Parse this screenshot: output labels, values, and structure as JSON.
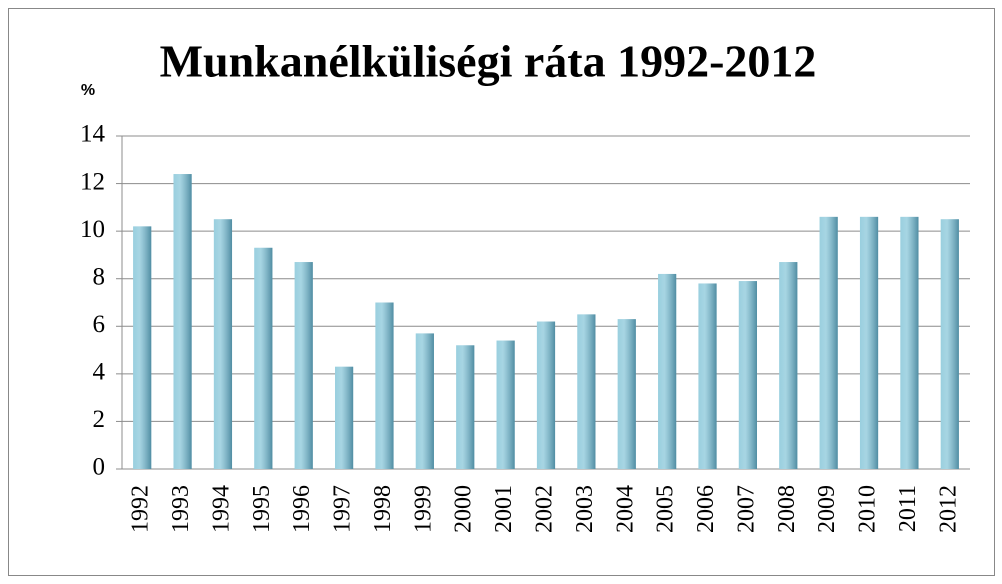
{
  "chart_data": {
    "type": "bar",
    "title": "Munkanélküliségi ráta 1992-2012",
    "y_label": "%",
    "categories": [
      "1992",
      "1993",
      "1994",
      "1995",
      "1996",
      "1997",
      "1998",
      "1999",
      "2000",
      "2001",
      "2002",
      "2003",
      "2004",
      "2005",
      "2006",
      "2007",
      "2008",
      "2009",
      "2010",
      "2011",
      "2012"
    ],
    "values": [
      10.2,
      12.4,
      10.5,
      9.3,
      8.7,
      4.3,
      7.0,
      5.7,
      5.2,
      5.4,
      6.2,
      6.5,
      6.3,
      8.2,
      7.8,
      7.9,
      8.7,
      10.6,
      10.6,
      10.6,
      10.5
    ],
    "color": "#78bfd4",
    "ylim": [
      0,
      14
    ],
    "yticks": [
      0,
      2,
      4,
      6,
      8,
      10,
      12,
      14
    ],
    "grid": true
  }
}
